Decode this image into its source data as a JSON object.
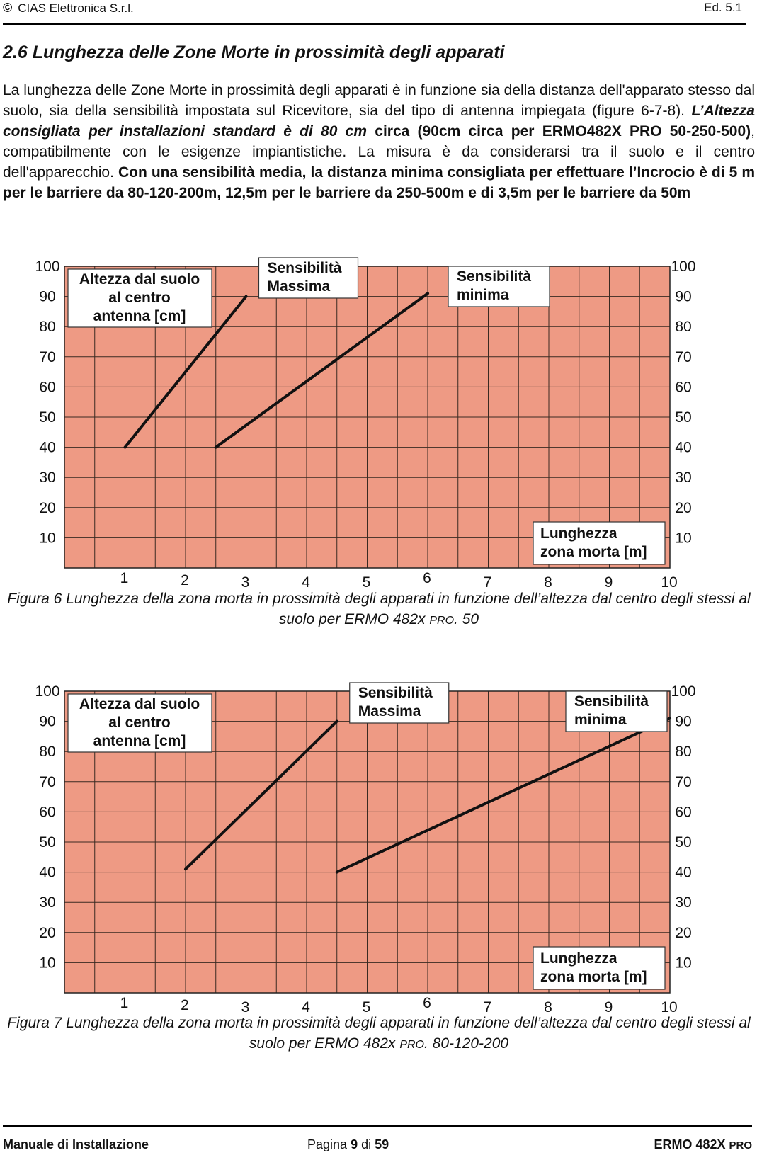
{
  "header": {
    "copyright_symbol": "©",
    "company": "CIAS Elettronica S.r.l.",
    "edition": "Ed. 5.1"
  },
  "section_title": "2.6  Lunghezza delle Zone Morte in prossimità degli apparati",
  "paragraph": {
    "p1": "La lunghezza delle Zone Morte in prossimità degli apparati è in funzione sia della distanza dell'apparato stesso dal suolo, sia della sensibilità impostata sul Ricevitore, sia del tipo di antenna impiegata (figure 6-7-8). ",
    "p2_bold_italic": "L’Altezza consigliata per installazioni standard è di 80 cm",
    "p3_bold": " circa (90cm circa per ERMO482X PRO 50-250-500)",
    "p4": ", compatibilmente con le esigenze impiantistiche. La misura è da considerarsi tra il suolo e il centro dell'apparecchio. ",
    "p5_bold": "Con una sensibilità media, la distanza minima consigliata per effettuare l’Incrocio è di 5 m per le barriere da 80-120-200m, 12,5m per le barriere da 250-500m e di 3,5m per le barriere da 50m"
  },
  "chart_data": [
    {
      "type": "line",
      "title": "",
      "ylabel": "Altezza dal suolo al centro antenna [cm]",
      "xlabel": "Lunghezza zona morta [m]",
      "ylim": [
        0,
        100
      ],
      "xlim": [
        0,
        10
      ],
      "y_ticks": [
        "100",
        "90",
        "80",
        "70",
        "60",
        "50",
        "40",
        "30",
        "20",
        "10"
      ],
      "x_ticks": [
        "1",
        "2",
        "3",
        "4",
        "5",
        "6",
        "7",
        "8",
        "9",
        "10"
      ],
      "ylabel_lines": [
        "Altezza dal suolo",
        "al centro",
        "antenna [cm]"
      ],
      "xlabel_lines": [
        "Lunghezza",
        "zona morta [m]"
      ],
      "series": [
        {
          "name": "Sensibilità Massima",
          "name_lines": [
            "Sensibilità",
            "Massima"
          ],
          "x": [
            1,
            3
          ],
          "y": [
            40,
            90
          ]
        },
        {
          "name": "Sensibilità minima",
          "name_lines": [
            "Sensibilità",
            "minima"
          ],
          "x": [
            2.5,
            6
          ],
          "y": [
            40,
            91
          ]
        }
      ]
    },
    {
      "type": "line",
      "title": "",
      "ylabel": "Altezza dal suolo al centro antenna [cm]",
      "xlabel": "Lunghezza zona morta [m]",
      "ylim": [
        0,
        100
      ],
      "xlim": [
        0,
        10
      ],
      "y_ticks": [
        "100",
        "90",
        "80",
        "70",
        "60",
        "50",
        "40",
        "30",
        "20",
        "10"
      ],
      "x_ticks": [
        "1",
        "2",
        "3",
        "4",
        "5",
        "6",
        "7",
        "8",
        "9",
        "10"
      ],
      "ylabel_lines": [
        "Altezza dal suolo",
        "al centro",
        "antenna [cm]"
      ],
      "xlabel_lines": [
        "Lunghezza",
        "zona morta [m]"
      ],
      "series": [
        {
          "name": "Sensibilità Massima",
          "name_lines": [
            "Sensibilità",
            "Massima"
          ],
          "x": [
            2,
            4.5
          ],
          "y": [
            41,
            90
          ]
        },
        {
          "name": "Sensibilità minima",
          "name_lines": [
            "Sensibilità",
            "minima"
          ],
          "x": [
            4.5,
            10
          ],
          "y": [
            40,
            91
          ]
        }
      ]
    }
  ],
  "captions": {
    "fig6_main": "Figura  6  Lunghezza della zona morta in prossimità degli apparati in funzione dell’altezza dal centro degli stessi al suolo per ERMO 482x ",
    "fig6_sc": "PRO",
    "fig6_end": ". 50",
    "fig7_main": "Figura  7  Lunghezza della zona morta  in prossimità degli apparati in funzione dell’altezza dal centro degli stessi al suolo per ERMO 482x ",
    "fig7_sc": "PRO",
    "fig7_end": ". 80-120-200"
  },
  "footer": {
    "left": "Manuale di Installazione",
    "page_label": "Pagina",
    "page_num": "9",
    "of_label": "di",
    "page_total": "59",
    "product": "ERMO 482X ",
    "product_sc": "PRO"
  },
  "colors": {
    "plot_fill": "#ee9a84",
    "grid": "#3a2a22",
    "line": "#111111"
  }
}
